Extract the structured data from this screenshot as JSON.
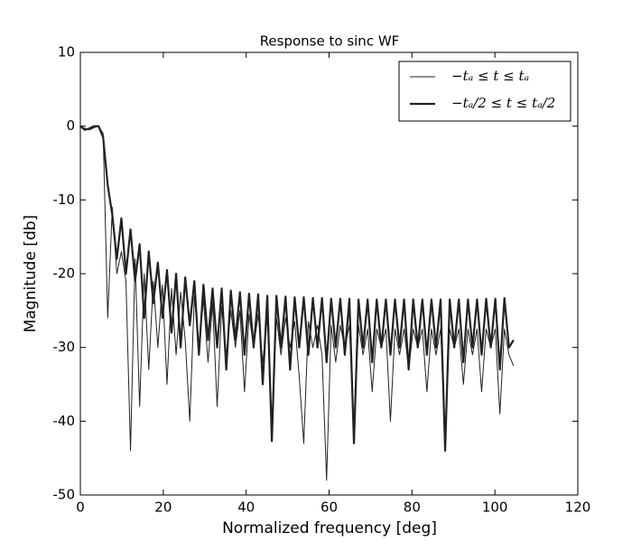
{
  "chart_data": {
    "type": "line",
    "title": "Response to sinc WF",
    "x_label": "Normalized frequency [deg]",
    "y_label": "Magnitude [db]",
    "xlim": [
      0,
      120
    ],
    "xticks": [
      0,
      20,
      40,
      60,
      80,
      100,
      120
    ],
    "ylim": [
      -50,
      10
    ],
    "yticks": [
      -50,
      -40,
      -30,
      -20,
      -10,
      0,
      10
    ],
    "grid": false,
    "legend_position": "upper right",
    "x": [
      0,
      1.1,
      2.2,
      3.3,
      4.4,
      5.5,
      6.6,
      7.7,
      8.8,
      9.9,
      11,
      12.1,
      13.2,
      14.3,
      15.4,
      16.5,
      17.6,
      18.7,
      19.8,
      20.9,
      22,
      23.1,
      24.2,
      25.3,
      26.4,
      27.5,
      28.6,
      29.7,
      30.8,
      31.9,
      33,
      34.1,
      35.2,
      36.3,
      37.4,
      38.5,
      39.6,
      40.7,
      41.8,
      42.9,
      44,
      45.1,
      46.2,
      47.3,
      48.4,
      49.5,
      50.6,
      51.7,
      52.8,
      53.9,
      55,
      56.1,
      57.2,
      58.3,
      59.4,
      60.5,
      61.6,
      62.7,
      63.8,
      64.9,
      66,
      67.1,
      68.2,
      69.3,
      70.4,
      71.5,
      72.6,
      73.7,
      74.8,
      75.9,
      77,
      78.1,
      79.2,
      80.3,
      81.4,
      82.5,
      83.6,
      84.7,
      85.8,
      86.9,
      88,
      89.1,
      90.2,
      91.3,
      92.4,
      93.5,
      94.6,
      95.7,
      96.8,
      97.9,
      99,
      100.1,
      101.2,
      102.3,
      103.4,
      104.5
    ],
    "series": [
      {
        "name": "−tₐ ≤ t ≤ tₐ",
        "color": "#222222",
        "width": 1,
        "values": [
          0,
          -0.3,
          -0.5,
          -0.2,
          0,
          -1,
          -26,
          -11,
          -20,
          -17,
          -21,
          -44,
          -18,
          -38,
          -20,
          -33,
          -21,
          -30,
          -21.5,
          -35,
          -22,
          -31,
          -22.5,
          -29,
          -40,
          -23,
          -30,
          -23.5,
          -32,
          -24,
          -38,
          -24.5,
          -31,
          -25,
          -30,
          -25,
          -36,
          -25.5,
          -30,
          -25.5,
          -32,
          -26,
          -40,
          -26,
          -31,
          -26,
          -30,
          -26.5,
          -34,
          -43,
          -26.5,
          -30,
          -27,
          -31,
          -48,
          -27,
          -32,
          -27,
          -30,
          -27,
          -42,
          -27,
          -31,
          -27.5,
          -36,
          -27.5,
          -30,
          -27.5,
          -40,
          -27.5,
          -31,
          -27.5,
          -33,
          -27.5,
          -30,
          -27.5,
          -36,
          -27.5,
          -31,
          -27.5,
          -42,
          -27.5,
          -30,
          -27.5,
          -35,
          -27.5,
          -31,
          -27.5,
          -36,
          -27.5,
          -30,
          -27.5,
          -39,
          -27.5,
          -31,
          -32.5
        ]
      },
      {
        "name": "−tₐ/2 ≤ t ≤ tₐ/2",
        "color": "#222222",
        "width": 2.2,
        "values": [
          0,
          -0.5,
          -0.3,
          0,
          0,
          -1.5,
          -8,
          -12,
          -18,
          -12.5,
          -20,
          -14,
          -21,
          -16,
          -26,
          -17,
          -24,
          -18.5,
          -26,
          -19.5,
          -28,
          -20,
          -30,
          -20.5,
          -27,
          -21,
          -31,
          -21.5,
          -29,
          -22,
          -30,
          -22,
          -33,
          -22.3,
          -29,
          -22.5,
          -31,
          -22.7,
          -30,
          -22.8,
          -35,
          -23,
          -42.7,
          -23,
          -30,
          -23.1,
          -33,
          -23.2,
          -30,
          -23.2,
          -31,
          -23.3,
          -30,
          -23.3,
          -32,
          -23.4,
          -30,
          -23.4,
          -31,
          -23.4,
          -43,
          -23.5,
          -30,
          -23.5,
          -32,
          -23.5,
          -30,
          -23.5,
          -31,
          -23.5,
          -30,
          -23.5,
          -33,
          -23.5,
          -30,
          -23.5,
          -31,
          -23.5,
          -30,
          -23.5,
          -44,
          -23.5,
          -30,
          -23.5,
          -32,
          -23.5,
          -30,
          -23.5,
          -31,
          -23.4,
          -30,
          -23.4,
          -33,
          -23.3,
          -30,
          -29
        ]
      }
    ]
  }
}
